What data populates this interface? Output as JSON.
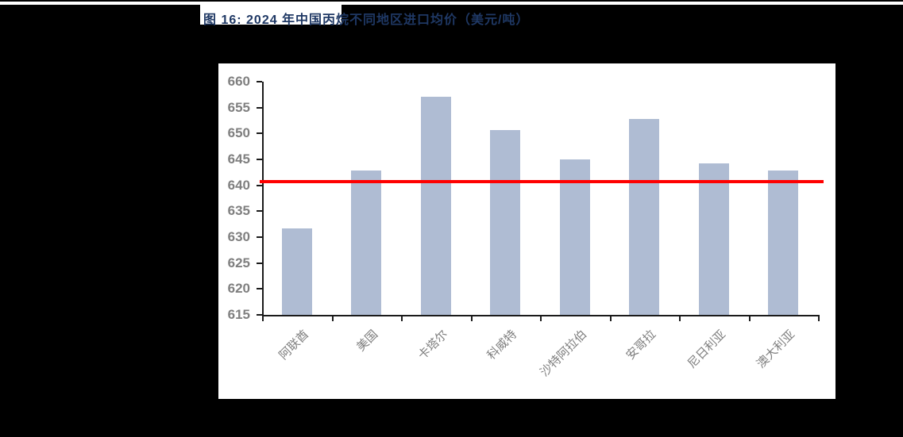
{
  "figure": {
    "title": "图 16:  2024 年中国丙烷不同地区进口均价（美元/吨）",
    "title_color": "#1F3864"
  },
  "chart_data": {
    "type": "bar",
    "title": "2024 年中国丙烷不同地区进口均价（美元/吨）",
    "categories": [
      "阿联酋",
      "美国",
      "卡塔尔",
      "科威特",
      "沙特阿拉伯",
      "安哥拉",
      "尼日利亚",
      "澳大利亚"
    ],
    "values": [
      631.7,
      642.8,
      657.1,
      650.7,
      645.0,
      652.8,
      644.3,
      642.9
    ],
    "series_name": "进口均价",
    "xlabel": "",
    "ylabel": "",
    "ylim": [
      615,
      660
    ],
    "yticks": [
      660,
      655,
      650,
      645,
      640,
      635,
      630,
      625,
      620,
      615
    ],
    "grid": false,
    "legend": null,
    "bar_color": "#AFBCD3",
    "axis_color": "#1a1a1a",
    "tick_label_color": "#7f7f7f",
    "reference_line": {
      "value": 640.7,
      "color": "#FF0000"
    }
  }
}
